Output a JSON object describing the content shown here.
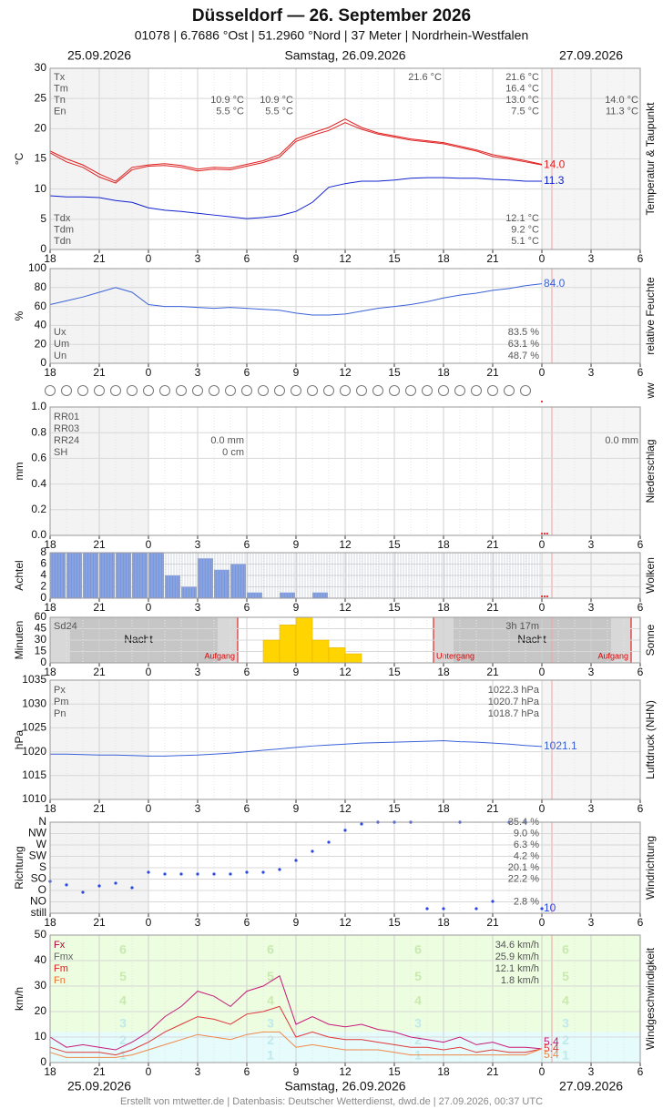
{
  "header": {
    "title": "Düsseldorf  —  26. September 2026",
    "subtitle": "01078  |  6.7686 °Ost  |  51.2960 °Nord  |  37 Meter  |  Nordrhein-Westfalen",
    "date_left": "25.09.2026",
    "date_center": "Samstag, 26.09.2026",
    "date_right": "27.09.2026"
  },
  "footer": "Erstellt von mtwetter.de | Datenbasis: Deutscher Wetterdienst, dwd.de | 27.09.2026, 00:37 UTC",
  "x_axis": {
    "xlim": [
      0,
      36
    ],
    "xticks": [
      {
        "value": 0,
        "label": "18"
      },
      {
        "value": 3,
        "label": "21"
      },
      {
        "value": 6,
        "label": "0"
      },
      {
        "value": 9,
        "label": "3"
      },
      {
        "value": 12,
        "label": "6"
      },
      {
        "value": 15,
        "label": "9"
      },
      {
        "value": 18,
        "label": "12"
      },
      {
        "value": 21,
        "label": "15"
      },
      {
        "value": 24,
        "label": "18"
      },
      {
        "value": 27,
        "label": "21"
      },
      {
        "value": 30,
        "label": "0"
      },
      {
        "value": 33,
        "label": "3"
      },
      {
        "value": 36,
        "label": "6"
      }
    ],
    "x": [
      0,
      1,
      2,
      3,
      4,
      5,
      6,
      7,
      8,
      9,
      10,
      11,
      12,
      13,
      14,
      15,
      16,
      17,
      18,
      19,
      20,
      21,
      22,
      23,
      24,
      25,
      26,
      27,
      28,
      29,
      30
    ]
  },
  "chart_data": [
    {
      "type": "line",
      "ylabel": "°C",
      "side_label": "Temperatur & Taupunkt",
      "ylim": [
        0,
        30
      ],
      "yticks": [
        0,
        5,
        10,
        15,
        20,
        25,
        30
      ],
      "grid": true,
      "series": [
        {
          "color": "#e02020",
          "values": [
            16,
            14.5,
            13.6,
            12,
            11,
            13.2,
            13.8,
            13.9,
            13.6,
            13,
            13.3,
            13.2,
            13.8,
            14.4,
            15.3,
            17.9,
            18.9,
            19.7,
            21,
            19.9,
            19.1,
            18.6,
            18.1,
            17.8,
            17.5,
            16.9,
            16.3,
            15.4,
            15,
            14.5,
            14
          ]
        },
        {
          "color": "#e02020",
          "values": [
            16.3,
            15,
            14,
            12.5,
            11.3,
            13.6,
            14,
            14.2,
            13.9,
            13.3,
            13.6,
            13.5,
            14.1,
            14.7,
            15.7,
            18.3,
            19.3,
            20.2,
            21.6,
            20.2,
            19.3,
            18.8,
            18.3,
            18,
            17.7,
            17.1,
            16.5,
            15.7,
            15.2,
            14.7,
            14.1
          ]
        },
        {
          "color": "#1020d0",
          "values": [
            8.9,
            8.7,
            8.7,
            8.6,
            8.1,
            7.8,
            6.9,
            6.5,
            6.3,
            6,
            5.7,
            5.4,
            5.1,
            5.3,
            5.6,
            6.3,
            7.8,
            10.3,
            10.9,
            11.3,
            11.3,
            11.5,
            11.8,
            11.9,
            11.9,
            11.8,
            11.8,
            11.6,
            11.5,
            11.3,
            11.3
          ]
        }
      ],
      "end_labels": [
        "14.0",
        null,
        "11.3"
      ],
      "stats": [
        {
          "labels": [
            "Tx",
            "Tm",
            "Tn",
            "En"
          ],
          "columns": [
            [
              "21.6 °C",
              null,
              null,
              null
            ],
            [
              null,
              null,
              "10.9 °C",
              "5.5 °C"
            ],
            [
              null,
              null,
              "10.9 °C",
              "5.5 °C"
            ],
            [
              "21.6 °C",
              "16.4 °C",
              "13.0 °C",
              "7.5 °C"
            ],
            [
              null,
              null,
              "14.0 °C",
              "11.3 °C"
            ]
          ]
        },
        {
          "labels": [
            "Tdx",
            "Tdm",
            "Tdn"
          ],
          "columns": [
            [
              "12.1 °C",
              "9.2 °C",
              "5.1 °C"
            ]
          ]
        }
      ]
    },
    {
      "type": "line",
      "ylabel": "%",
      "side_label": "relative Feuchte",
      "ylim": [
        0,
        100
      ],
      "yticks": [
        0,
        20,
        40,
        60,
        80,
        100
      ],
      "grid": true,
      "series": [
        {
          "color": "#3a62d8",
          "values": [
            62,
            66,
            70,
            75,
            80,
            75,
            62,
            60,
            60,
            59,
            58,
            59,
            58,
            57,
            56,
            53,
            51,
            51,
            52,
            55,
            58,
            60,
            62,
            65,
            69,
            72,
            74,
            77,
            79,
            82,
            84
          ]
        }
      ],
      "end_labels": [
        "84.0"
      ],
      "stats": [
        {
          "labels": [
            "Ux",
            "Um",
            "Un"
          ],
          "columns": [
            [
              "83.5 %",
              "63.1 %",
              "48.7 %"
            ]
          ]
        }
      ]
    },
    {
      "type": "symbols",
      "side_label": "ww"
    },
    {
      "type": "bar",
      "ylabel": "mm",
      "side_label": "Niederschlag",
      "ylim": [
        0,
        1
      ],
      "yticks": [
        {
          "value": 0,
          "label": "0.0"
        },
        0.2,
        0.4,
        0.6,
        0.8,
        {
          "value": 1,
          "label": "1.0"
        }
      ],
      "grid": true,
      "series": [],
      "stats": [
        {
          "labels": [
            "RR01",
            "RR03",
            "RR24",
            "SH"
          ],
          "columns": [
            [
              null,
              null,
              "0.0 mm",
              "0 cm"
            ],
            [
              null,
              null,
              "0.0 mm",
              null
            ]
          ]
        }
      ]
    },
    {
      "type": "bar",
      "ylabel": "Achtel",
      "side_label": "Wolken",
      "ylim": [
        0,
        8
      ],
      "yticks": [
        0,
        2,
        4,
        6,
        8
      ],
      "grid": true,
      "series": [
        {
          "color": "#7898e4",
          "values": [
            8,
            8,
            8,
            8,
            8,
            8,
            8,
            4,
            2,
            7,
            5,
            6,
            1,
            0,
            1,
            0,
            1,
            0,
            0,
            0,
            0,
            0,
            0,
            0,
            0,
            0,
            0,
            0,
            0,
            0
          ]
        }
      ]
    },
    {
      "type": "bar",
      "ylabel": "Minuten",
      "side_label": "Sonne",
      "ylim": [
        0,
        60
      ],
      "yticks": [
        0,
        15,
        30,
        45,
        60
      ],
      "grid": true,
      "series": [
        {
          "color": "#ffd400",
          "x": [
            13,
            14,
            15,
            16,
            17,
            18
          ],
          "values": [
            30,
            50,
            60,
            30,
            20,
            12
          ]
        }
      ],
      "stats": [
        {
          "labels": [
            "Sd24"
          ],
          "columns": [
            [
              "3h 17m"
            ]
          ]
        }
      ],
      "labels": {
        "night": "Nacht",
        "sunrise": "Aufgang",
        "sunset": "Untergang"
      }
    },
    {
      "type": "line",
      "ylabel": "hPa",
      "side_label": "Luftdruck (NHN)",
      "ylim": [
        1010,
        1035
      ],
      "yticks": [
        1010,
        1015,
        1020,
        1025,
        1030,
        1035
      ],
      "grid": true,
      "series": [
        {
          "color": "#3a62d8",
          "values": [
            1019.5,
            1019.5,
            1019.4,
            1019.3,
            1019.3,
            1019.2,
            1019.1,
            1019.1,
            1019.2,
            1019.3,
            1019.5,
            1019.7,
            1020,
            1020.3,
            1020.6,
            1020.9,
            1021.2,
            1021.4,
            1021.6,
            1021.8,
            1021.9,
            1022,
            1022.1,
            1022.2,
            1022.3,
            1022.1,
            1022,
            1021.8,
            1021.6,
            1021.3,
            1021.1
          ]
        }
      ],
      "end_labels": [
        "1021.1"
      ],
      "stats": [
        {
          "labels": [
            "Px",
            "Pm",
            "Pn"
          ],
          "columns": [
            [
              "1022.3 hPa",
              "1020.7 hPa",
              "1018.7 hPa"
            ]
          ]
        }
      ]
    },
    {
      "type": "scatter",
      "ylabel": "Richtung",
      "side_label": "Windrichtung",
      "ylim": [
        0,
        360
      ],
      "yticks": [
        {
          "value": 360,
          "label": "N"
        },
        {
          "value": 315,
          "label": "NW"
        },
        {
          "value": 270,
          "label": "W"
        },
        {
          "value": 225,
          "label": "SW"
        },
        {
          "value": 180,
          "label": "S"
        },
        {
          "value": 135,
          "label": "SO"
        },
        {
          "value": 90,
          "label": "O"
        },
        {
          "value": 45,
          "label": "NO"
        },
        {
          "value": 0,
          "label": "still"
        }
      ],
      "grid": true,
      "series": [
        {
          "color": "#2848e0",
          "values": [
            126,
            112,
            83,
            108,
            119,
            101,
            162,
            155,
            155,
            155,
            155,
            155,
            162,
            162,
            173,
            209,
            245,
            281,
            328,
            353,
            360,
            360,
            360,
            18,
            18,
            360,
            18,
            47,
            360,
            360,
            18
          ]
        }
      ],
      "end_labels": [
        "10"
      ],
      "stats": [
        {
          "columns": [
            [
              "35.4 %",
              "9.0 %",
              "6.3 %",
              "4.2 %",
              "20.1 %",
              "22.2 %",
              null,
              "2.8 %",
              null
            ]
          ]
        }
      ]
    },
    {
      "type": "line",
      "ylabel": "km/h",
      "side_label": "Windgeschwindigkeit",
      "ylim": [
        0,
        50
      ],
      "yticks": [
        0,
        10,
        20,
        30,
        40,
        50
      ],
      "grid": true,
      "beaufort": [
        1,
        2,
        3,
        4,
        5,
        6
      ],
      "series": [
        {
          "color": "#c8187a",
          "values": [
            10,
            6,
            7,
            6,
            5,
            8,
            12,
            18,
            22,
            28,
            26,
            22,
            28,
            30,
            34,
            15,
            18,
            15,
            14,
            15,
            13,
            12,
            10,
            9,
            8,
            10,
            7,
            8,
            6,
            6,
            5.4
          ]
        },
        {
          "color": "#e03838",
          "values": [
            6,
            4,
            4,
            4,
            3,
            5,
            8,
            12,
            15,
            18,
            17,
            15,
            19,
            20,
            22,
            10,
            12,
            10,
            9,
            9,
            8,
            7,
            6,
            6,
            5,
            6,
            4,
            5,
            4,
            4,
            5.4
          ]
        },
        {
          "color": "#f08848",
          "values": [
            4,
            2,
            2,
            2,
            2,
            3,
            5,
            7,
            9,
            11,
            10,
            9,
            11,
            12,
            12,
            6,
            7,
            6,
            5,
            5,
            5,
            4,
            3,
            3,
            3,
            3,
            3,
            3,
            3,
            3,
            5.4
          ]
        }
      ],
      "end_labels": [
        "5.4",
        "5.4",
        "5.4"
      ],
      "stats": [
        {
          "labels": [
            "Fx",
            "Fmx",
            "Fm",
            "Fn"
          ],
          "label_colors": [
            "#b0003a",
            "#666666",
            "#e02020",
            "#f07030"
          ],
          "columns": [
            [
              "34.6 km/h",
              "25.9 km/h",
              "12.1 km/h",
              "1.8 km/h"
            ]
          ]
        }
      ]
    }
  ]
}
